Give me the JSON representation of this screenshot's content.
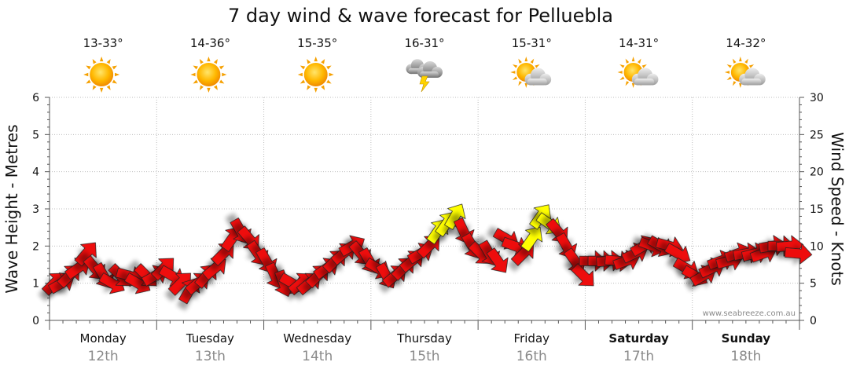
{
  "chart_data": {
    "type": "line",
    "title": "7 day wind & wave forecast for Pelluebla",
    "ylabel_left": "Wave Height - Metres",
    "ylabel_right": "Wind Speed - Knots",
    "ylim_left": [
      0,
      6
    ],
    "ylim_right": [
      0,
      30
    ],
    "yticks_left": [
      "0",
      "1",
      "2",
      "3",
      "4",
      "5",
      "6"
    ],
    "yticks_right": [
      "0",
      "5",
      "10",
      "15",
      "20",
      "25",
      "30"
    ],
    "watermark": "www.seabreeze.com.au",
    "colors": {
      "strong": "#ee1111",
      "light": "#ffff00",
      "outline": "#222222"
    },
    "days": [
      {
        "day": "Monday",
        "date": "12th",
        "temp": "13-33°",
        "icon": "sun-icon",
        "bold": false
      },
      {
        "day": "Tuesday",
        "date": "13th",
        "temp": "14-36°",
        "icon": "sun-icon",
        "bold": false
      },
      {
        "day": "Wednesday",
        "date": "14th",
        "temp": "15-35°",
        "icon": "sun-icon",
        "bold": false
      },
      {
        "day": "Thursday",
        "date": "15th",
        "temp": "16-31°",
        "icon": "thunderstorm-icon",
        "bold": false
      },
      {
        "day": "Friday",
        "date": "16th",
        "temp": "15-31°",
        "icon": "partly-cloudy-icon",
        "bold": false
      },
      {
        "day": "Saturday",
        "date": "17th",
        "temp": "14-31°",
        "icon": "partly-cloudy-icon",
        "bold": true
      },
      {
        "day": "Sunday",
        "date": "18th",
        "temp": "14-32°",
        "icon": "partly-cloudy-icon",
        "bold": true
      }
    ],
    "series": [
      {
        "name": "wind",
        "note": "t = day index (0 = start of Monday); knots = wind speed; dir = arrow heading in compass degrees; light = shown in yellow",
        "points": [
          {
            "t": 0.0,
            "knots": 5,
            "dir": 225,
            "light": false
          },
          {
            "t": 0.07,
            "knots": 5,
            "dir": 240,
            "light": false
          },
          {
            "t": 0.14,
            "knots": 6,
            "dir": 225,
            "light": false
          },
          {
            "t": 0.22,
            "knots": 7,
            "dir": 235,
            "light": false
          },
          {
            "t": 0.3,
            "knots": 9,
            "dir": 220,
            "light": false
          },
          {
            "t": 0.38,
            "knots": 7,
            "dir": 320,
            "light": false
          },
          {
            "t": 0.46,
            "knots": 6,
            "dir": 330,
            "light": false
          },
          {
            "t": 0.54,
            "knots": 5,
            "dir": 300,
            "light": false
          },
          {
            "t": 0.62,
            "knots": 6,
            "dir": 315,
            "light": false
          },
          {
            "t": 0.7,
            "knots": 6,
            "dir": 285,
            "light": false
          },
          {
            "t": 0.78,
            "knots": 5,
            "dir": 300,
            "light": false
          },
          {
            "t": 0.86,
            "knots": 6,
            "dir": 315,
            "light": false
          },
          {
            "t": 0.94,
            "knots": 6,
            "dir": 240,
            "light": false
          },
          {
            "t": 1.02,
            "knots": 7,
            "dir": 225,
            "light": false
          },
          {
            "t": 1.1,
            "knots": 6,
            "dir": 300,
            "light": false
          },
          {
            "t": 1.18,
            "knots": 5,
            "dir": 225,
            "light": false
          },
          {
            "t": 1.26,
            "knots": 4,
            "dir": 210,
            "light": false
          },
          {
            "t": 1.34,
            "knots": 5,
            "dir": 230,
            "light": false
          },
          {
            "t": 1.42,
            "knots": 6,
            "dir": 220,
            "light": false
          },
          {
            "t": 1.5,
            "knots": 7,
            "dir": 230,
            "light": false
          },
          {
            "t": 1.58,
            "knots": 9,
            "dir": 225,
            "light": false
          },
          {
            "t": 1.66,
            "knots": 11,
            "dir": 215,
            "light": false
          },
          {
            "t": 1.74,
            "knots": 12,
            "dir": 330,
            "light": false
          },
          {
            "t": 1.82,
            "knots": 11,
            "dir": 320,
            "light": false
          },
          {
            "t": 1.9,
            "knots": 9,
            "dir": 325,
            "light": false
          },
          {
            "t": 1.98,
            "knots": 8,
            "dir": 330,
            "light": false
          },
          {
            "t": 2.06,
            "knots": 6,
            "dir": 335,
            "light": false
          },
          {
            "t": 2.14,
            "knots": 5,
            "dir": 340,
            "light": false
          },
          {
            "t": 2.22,
            "knots": 5,
            "dir": 300,
            "light": false
          },
          {
            "t": 2.3,
            "knots": 5,
            "dir": 230,
            "light": false
          },
          {
            "t": 2.38,
            "knots": 5,
            "dir": 230,
            "light": false
          },
          {
            "t": 2.46,
            "knots": 6,
            "dir": 225,
            "light": false
          },
          {
            "t": 2.54,
            "knots": 7,
            "dir": 235,
            "light": false
          },
          {
            "t": 2.62,
            "knots": 8,
            "dir": 225,
            "light": false
          },
          {
            "t": 2.7,
            "knots": 9,
            "dir": 230,
            "light": false
          },
          {
            "t": 2.78,
            "knots": 10,
            "dir": 240,
            "light": false
          },
          {
            "t": 2.86,
            "knots": 9,
            "dir": 320,
            "light": false
          },
          {
            "t": 2.94,
            "knots": 8,
            "dir": 330,
            "light": false
          },
          {
            "t": 3.02,
            "knots": 7,
            "dir": 300,
            "light": false
          },
          {
            "t": 3.1,
            "knots": 6,
            "dir": 330,
            "light": false
          },
          {
            "t": 3.18,
            "knots": 6,
            "dir": 230,
            "light": false
          },
          {
            "t": 3.26,
            "knots": 7,
            "dir": 225,
            "light": false
          },
          {
            "t": 3.34,
            "knots": 8,
            "dir": 230,
            "light": false
          },
          {
            "t": 3.42,
            "knots": 9,
            "dir": 240,
            "light": false
          },
          {
            "t": 3.5,
            "knots": 10,
            "dir": 225,
            "light": false
          },
          {
            "t": 3.58,
            "knots": 12,
            "dir": 215,
            "light": true
          },
          {
            "t": 3.66,
            "knots": 13,
            "dir": 215,
            "light": true
          },
          {
            "t": 3.74,
            "knots": 14,
            "dir": 210,
            "light": true
          },
          {
            "t": 3.82,
            "knots": 12,
            "dir": 335,
            "light": false
          },
          {
            "t": 3.9,
            "knots": 10,
            "dir": 330,
            "light": false
          },
          {
            "t": 3.98,
            "knots": 9,
            "dir": 315,
            "light": false
          },
          {
            "t": 4.06,
            "knots": 9,
            "dir": 330,
            "light": false
          },
          {
            "t": 4.14,
            "knots": 8,
            "dir": 325,
            "light": false
          },
          {
            "t": 4.22,
            "knots": 11,
            "dir": 300,
            "light": false
          },
          {
            "t": 4.3,
            "knots": 10,
            "dir": 290,
            "light": false
          },
          {
            "t": 4.38,
            "knots": 9,
            "dir": 225,
            "light": false
          },
          {
            "t": 4.46,
            "knots": 11,
            "dir": 215,
            "light": true
          },
          {
            "t": 4.54,
            "knots": 14,
            "dir": 215,
            "light": true
          },
          {
            "t": 4.62,
            "knots": 13,
            "dir": 305,
            "light": true
          },
          {
            "t": 4.7,
            "knots": 12,
            "dir": 320,
            "light": false
          },
          {
            "t": 4.78,
            "knots": 10,
            "dir": 330,
            "light": false
          },
          {
            "t": 4.86,
            "knots": 8,
            "dir": 325,
            "light": false
          },
          {
            "t": 4.94,
            "knots": 6,
            "dir": 315,
            "light": false
          },
          {
            "t": 5.02,
            "knots": 8,
            "dir": 270,
            "light": false
          },
          {
            "t": 5.1,
            "knots": 8,
            "dir": 270,
            "light": false
          },
          {
            "t": 5.18,
            "knots": 8,
            "dir": 265,
            "light": false
          },
          {
            "t": 5.26,
            "knots": 8,
            "dir": 275,
            "light": false
          },
          {
            "t": 5.34,
            "knots": 8,
            "dir": 250,
            "light": false
          },
          {
            "t": 5.42,
            "knots": 9,
            "dir": 245,
            "light": false
          },
          {
            "t": 5.5,
            "knots": 10,
            "dir": 240,
            "light": false
          },
          {
            "t": 5.58,
            "knots": 10,
            "dir": 290,
            "light": false
          },
          {
            "t": 5.66,
            "knots": 10,
            "dir": 300,
            "light": false
          },
          {
            "t": 5.74,
            "knots": 10,
            "dir": 285,
            "light": false
          },
          {
            "t": 5.82,
            "knots": 9,
            "dir": 300,
            "light": false
          },
          {
            "t": 5.9,
            "knots": 7,
            "dir": 300,
            "light": false
          },
          {
            "t": 5.98,
            "knots": 6,
            "dir": 300,
            "light": false
          },
          {
            "t": 6.06,
            "knots": 6,
            "dir": 240,
            "light": false
          },
          {
            "t": 6.14,
            "knots": 7,
            "dir": 245,
            "light": false
          },
          {
            "t": 6.22,
            "knots": 8,
            "dir": 250,
            "light": false
          },
          {
            "t": 6.3,
            "knots": 8,
            "dir": 255,
            "light": false
          },
          {
            "t": 6.38,
            "knots": 9,
            "dir": 250,
            "light": false
          },
          {
            "t": 6.46,
            "knots": 9,
            "dir": 260,
            "light": false
          },
          {
            "t": 6.54,
            "knots": 9,
            "dir": 255,
            "light": false
          },
          {
            "t": 6.62,
            "knots": 9,
            "dir": 250,
            "light": false
          },
          {
            "t": 6.7,
            "knots": 10,
            "dir": 260,
            "light": false
          },
          {
            "t": 6.78,
            "knots": 10,
            "dir": 270,
            "light": false
          },
          {
            "t": 6.86,
            "knots": 10,
            "dir": 265,
            "light": false
          },
          {
            "t": 6.94,
            "knots": 9,
            "dir": 275,
            "light": false
          }
        ]
      }
    ]
  }
}
